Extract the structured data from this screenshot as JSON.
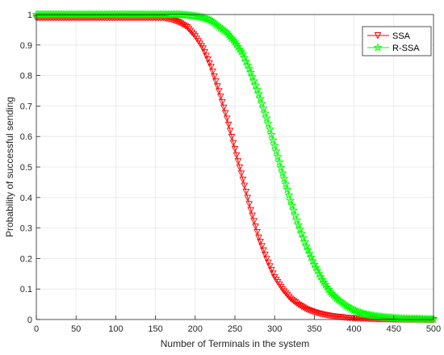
{
  "chart_data": {
    "type": "line",
    "title": "",
    "xlabel": "Number of Terminals in the system",
    "ylabel": "Probability of successful sending",
    "xlim": [
      0,
      500
    ],
    "ylim": [
      0,
      1
    ],
    "xticks": [
      "0",
      "50",
      "100",
      "150",
      "200",
      "250",
      "300",
      "350",
      "400",
      "450",
      "500"
    ],
    "yticks": [
      "0",
      "0.1",
      "0.2",
      "0.3",
      "0.4",
      "0.5",
      "0.6",
      "0.7",
      "0.8",
      "0.9",
      "1"
    ],
    "grid": true,
    "legend_position": "top-right",
    "x": [
      0,
      20,
      40,
      60,
      80,
      100,
      120,
      140,
      160,
      170,
      180,
      190,
      200,
      210,
      220,
      230,
      240,
      250,
      260,
      270,
      280,
      290,
      300,
      310,
      320,
      330,
      340,
      350,
      360,
      370,
      380,
      390,
      400,
      410,
      420,
      430,
      440,
      450,
      460,
      470,
      480,
      490,
      500
    ],
    "series": [
      {
        "name": "SSA",
        "color": "#ff0000",
        "marker": "triangle-down",
        "values": [
          0.99,
          0.99,
          0.99,
          0.99,
          0.99,
          0.99,
          0.99,
          0.99,
          0.99,
          0.985,
          0.975,
          0.96,
          0.93,
          0.89,
          0.83,
          0.75,
          0.66,
          0.56,
          0.46,
          0.36,
          0.27,
          0.2,
          0.14,
          0.1,
          0.07,
          0.05,
          0.035,
          0.025,
          0.018,
          0.013,
          0.01,
          0.007,
          0.005,
          0.004,
          0.003,
          0.002,
          0.002,
          0.001,
          0.001,
          0.001,
          0.001,
          0.0,
          0.0
        ]
      },
      {
        "name": "R-SSA",
        "color": "#00ff00",
        "marker": "star",
        "values": [
          1.0,
          1.0,
          1.0,
          1.0,
          1.0,
          1.0,
          1.0,
          1.0,
          1.0,
          1.0,
          1.0,
          0.998,
          0.995,
          0.99,
          0.98,
          0.96,
          0.94,
          0.91,
          0.87,
          0.81,
          0.74,
          0.66,
          0.57,
          0.48,
          0.39,
          0.31,
          0.24,
          0.18,
          0.13,
          0.09,
          0.065,
          0.045,
          0.03,
          0.02,
          0.014,
          0.01,
          0.007,
          0.005,
          0.003,
          0.002,
          0.002,
          0.001,
          0.001
        ]
      }
    ]
  }
}
